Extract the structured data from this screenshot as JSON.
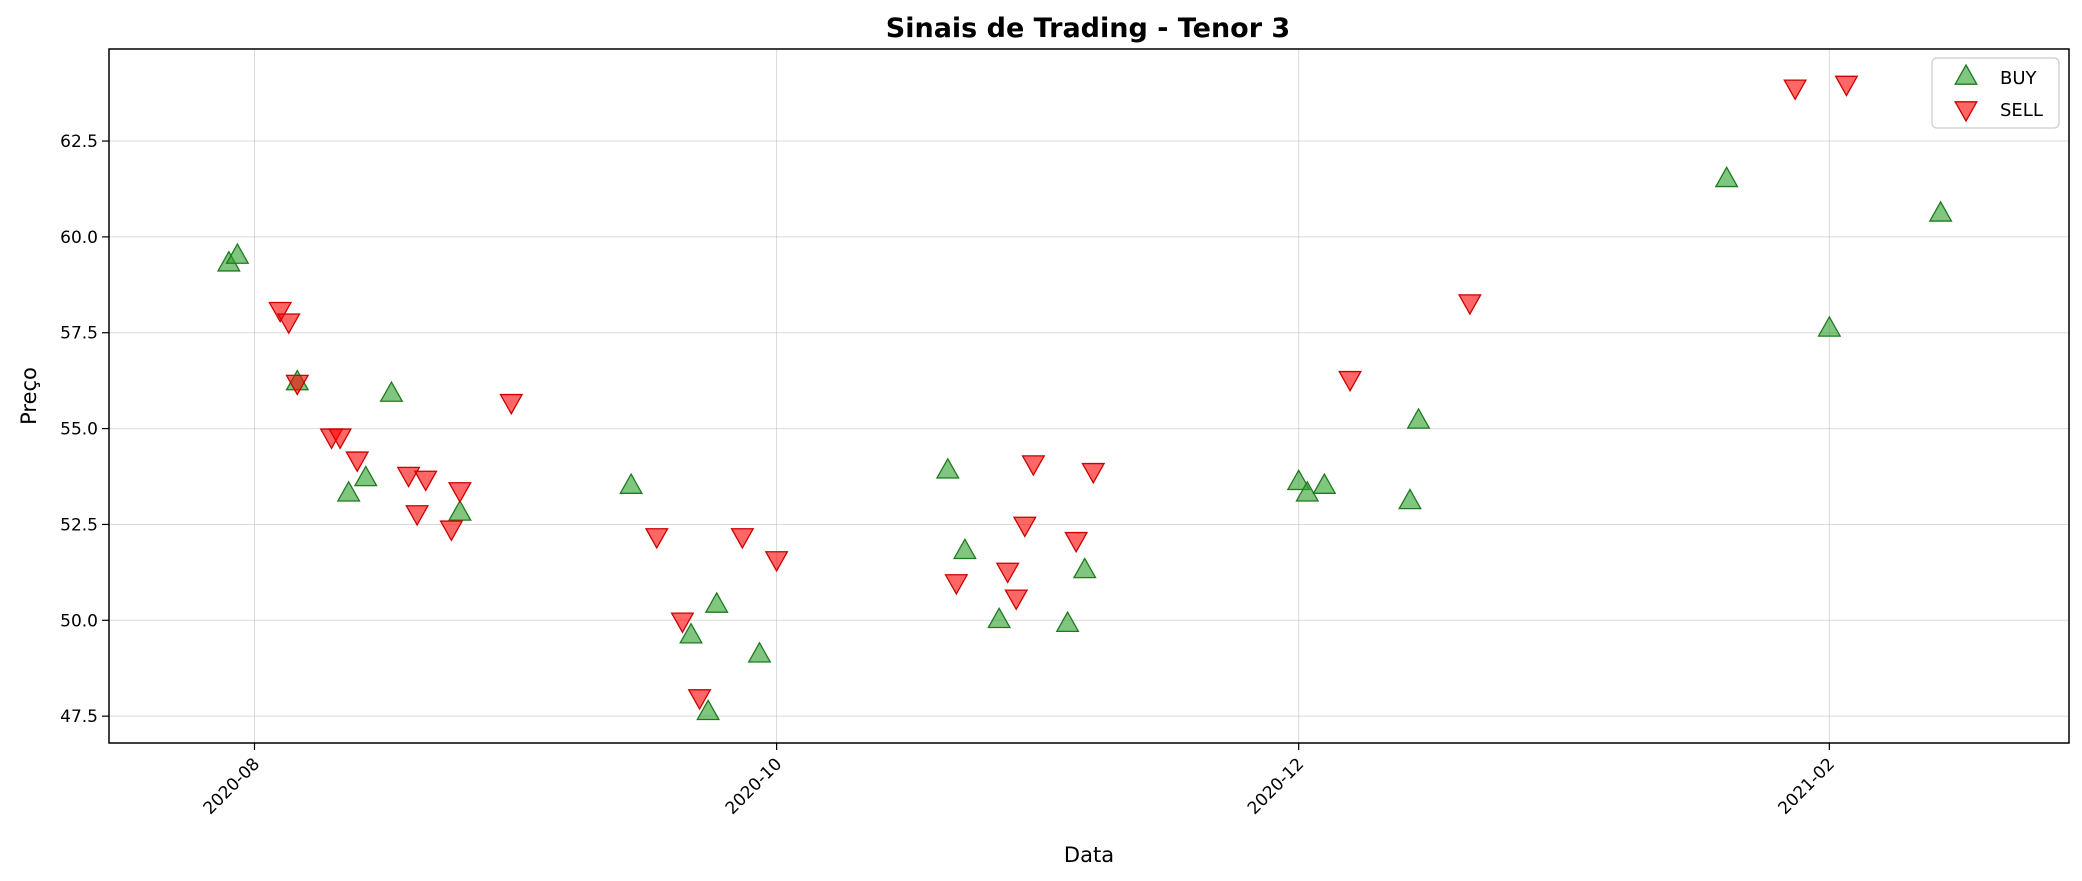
{
  "chart_data": {
    "type": "scatter",
    "title": "Sinais de Trading - Tenor 3",
    "xlabel": "Data",
    "ylabel": "Preço",
    "x_type": "date",
    "xlim": [
      "2020-07-15",
      "2021-03-01"
    ],
    "ylim": [
      46.8,
      64.9
    ],
    "xticks": [
      {
        "value": "2020-08-01",
        "label": "2020-08"
      },
      {
        "value": "2020-10-01",
        "label": "2020-10"
      },
      {
        "value": "2020-12-01",
        "label": "2020-12"
      },
      {
        "value": "2021-02-01",
        "label": "2021-02"
      }
    ],
    "yticks": [
      {
        "value": 47.5,
        "label": "47.5"
      },
      {
        "value": 50.0,
        "label": "50.0"
      },
      {
        "value": 52.5,
        "label": "52.5"
      },
      {
        "value": 55.0,
        "label": "55.0"
      },
      {
        "value": 57.5,
        "label": "57.5"
      },
      {
        "value": 60.0,
        "label": "60.0"
      },
      {
        "value": 62.5,
        "label": "62.5"
      }
    ],
    "grid": true,
    "legend_position": "top-right",
    "series": [
      {
        "name": "BUY",
        "marker": "triangle-up",
        "color": "#2ca02c",
        "points": [
          {
            "x": "2020-07-29",
            "y": 59.3
          },
          {
            "x": "2020-07-30",
            "y": 59.5
          },
          {
            "x": "2020-08-06",
            "y": 56.2
          },
          {
            "x": "2020-08-12",
            "y": 53.3
          },
          {
            "x": "2020-08-14",
            "y": 53.7
          },
          {
            "x": "2020-08-17",
            "y": 55.9
          },
          {
            "x": "2020-08-25",
            "y": 52.8
          },
          {
            "x": "2020-09-14",
            "y": 53.5
          },
          {
            "x": "2020-09-21",
            "y": 49.6
          },
          {
            "x": "2020-09-23",
            "y": 47.6
          },
          {
            "x": "2020-09-24",
            "y": 50.4
          },
          {
            "x": "2020-09-29",
            "y": 49.1
          },
          {
            "x": "2020-10-21",
            "y": 53.9
          },
          {
            "x": "2020-10-23",
            "y": 51.8
          },
          {
            "x": "2020-10-27",
            "y": 50.0
          },
          {
            "x": "2020-11-04",
            "y": 49.9
          },
          {
            "x": "2020-11-06",
            "y": 51.3
          },
          {
            "x": "2020-12-01",
            "y": 53.6
          },
          {
            "x": "2020-12-02",
            "y": 53.3
          },
          {
            "x": "2020-12-04",
            "y": 53.5
          },
          {
            "x": "2020-12-14",
            "y": 53.1
          },
          {
            "x": "2020-12-15",
            "y": 55.2
          },
          {
            "x": "2021-01-20",
            "y": 61.5
          },
          {
            "x": "2021-02-01",
            "y": 57.6
          },
          {
            "x": "2021-02-14",
            "y": 60.6
          }
        ]
      },
      {
        "name": "SELL",
        "marker": "triangle-down",
        "color": "#ff0000",
        "points": [
          {
            "x": "2020-08-04",
            "y": 58.1
          },
          {
            "x": "2020-08-05",
            "y": 57.8
          },
          {
            "x": "2020-08-06",
            "y": 56.2
          },
          {
            "x": "2020-08-10",
            "y": 54.8
          },
          {
            "x": "2020-08-11",
            "y": 54.8
          },
          {
            "x": "2020-08-13",
            "y": 54.2
          },
          {
            "x": "2020-08-19",
            "y": 53.8
          },
          {
            "x": "2020-08-20",
            "y": 52.8
          },
          {
            "x": "2020-08-21",
            "y": 53.7
          },
          {
            "x": "2020-08-24",
            "y": 52.4
          },
          {
            "x": "2020-08-25",
            "y": 53.4
          },
          {
            "x": "2020-08-31",
            "y": 55.7
          },
          {
            "x": "2020-09-17",
            "y": 52.2
          },
          {
            "x": "2020-09-20",
            "y": 50.0
          },
          {
            "x": "2020-09-22",
            "y": 48.0
          },
          {
            "x": "2020-09-27",
            "y": 52.2
          },
          {
            "x": "2020-10-01",
            "y": 51.6
          },
          {
            "x": "2020-10-22",
            "y": 51.0
          },
          {
            "x": "2020-10-28",
            "y": 51.3
          },
          {
            "x": "2020-10-29",
            "y": 50.6
          },
          {
            "x": "2020-10-30",
            "y": 52.5
          },
          {
            "x": "2020-10-31",
            "y": 54.1
          },
          {
            "x": "2020-11-05",
            "y": 52.1
          },
          {
            "x": "2020-11-07",
            "y": 53.9
          },
          {
            "x": "2020-12-07",
            "y": 56.3
          },
          {
            "x": "2020-12-21",
            "y": 58.3
          },
          {
            "x": "2021-01-28",
            "y": 63.9
          },
          {
            "x": "2021-02-03",
            "y": 64.0
          }
        ]
      }
    ]
  }
}
